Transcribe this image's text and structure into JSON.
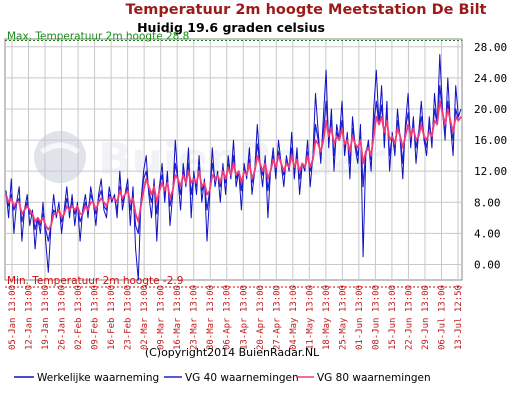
{
  "chart_data": {
    "type": "line",
    "title": "Temperatuur 2m hoogte Meetstation De Bilt",
    "subtitle": "Huidig 19.6 graden celsius",
    "max_label": "Max. Temperatuur 2m hoogte 28.8",
    "min_label": "Min. Temperatuur 2m hoogte -2.9",
    "watermark": "BuienRadar",
    "copyright": "(C)opyright2014 BuienRadar.NL",
    "ylim": [
      -2.0,
      29.0
    ],
    "yticks": [
      0,
      4,
      8,
      12,
      16,
      20,
      24,
      28
    ],
    "ytick_labels": [
      "0.00",
      "4.00",
      "8.00",
      "12.00",
      "16.00",
      "20.00",
      "24.00",
      "28.00"
    ],
    "max_value": 28.8,
    "min_value": -2.9,
    "x_labels": [
      "05-Jan 13:00",
      "12-Jan 13:00",
      "19-Jan 13:00",
      "26-Jan 13:00",
      "02-Feb 13:00",
      "09-Feb 13:00",
      "16-Feb 13:00",
      "23-Feb 13:00",
      "02-Mar 13:00",
      "09-Mar 13:00",
      "16-Mar 13:00",
      "23-Mar 13:00",
      "30-Mar 13:00",
      "06-Apr 13:00",
      "13-Apr 13:00",
      "20-Apr 13:00",
      "27-Apr 13:00",
      "04-May 13:00",
      "11-May 13:00",
      "18-May 13:00",
      "25-May 13:00",
      "01-Jun 13:00",
      "08-Jun 13:00",
      "15-Jun 13:00",
      "22-Jun 13:00",
      "29-Jun 13:00",
      "06-Jul 13:00",
      "13-Jul 12:50"
    ],
    "legend_position": "bottom",
    "grid": true,
    "series": [
      {
        "name": "Werkelijke waarneming",
        "color": "#1010c0",
        "values": [
          9.5,
          6,
          11,
          4,
          8,
          10,
          3,
          7,
          9,
          5,
          7,
          2,
          6,
          4,
          8,
          3,
          -1,
          5,
          9,
          6,
          8,
          4,
          7,
          10,
          6,
          9,
          5,
          8,
          3,
          7,
          9,
          6,
          10,
          8,
          5,
          9,
          11,
          7,
          6,
          10,
          8,
          9,
          6,
          12,
          7,
          9,
          11,
          5,
          10,
          2,
          -2,
          8,
          12,
          14,
          9,
          6,
          11,
          3,
          10,
          13,
          8,
          12,
          5,
          9,
          16,
          11,
          7,
          13,
          10,
          15,
          6,
          12,
          9,
          14,
          8,
          11,
          3,
          9,
          15,
          10,
          12,
          8,
          13,
          9,
          14,
          11,
          16,
          10,
          12,
          7,
          13,
          11,
          15,
          9,
          12,
          18,
          13,
          10,
          14,
          6,
          12,
          15,
          11,
          16,
          13,
          10,
          14,
          12,
          17,
          11,
          15,
          9,
          13,
          12,
          16,
          10,
          14,
          22,
          17,
          13,
          19,
          25,
          15,
          20,
          12,
          18,
          16,
          21,
          14,
          17,
          11,
          19,
          15,
          13,
          18,
          1,
          14,
          16,
          12,
          20,
          25,
          18,
          23,
          15,
          21,
          12,
          17,
          14,
          20,
          16,
          11,
          18,
          22,
          15,
          19,
          13,
          17,
          21,
          16,
          14,
          19,
          15,
          22,
          18,
          27,
          20,
          16,
          24,
          18,
          14,
          23,
          19,
          20
        ]
      },
      {
        "name": "VG 40 waarnemingen",
        "color": "#2020d0",
        "values": [
          9,
          7.5,
          9,
          7,
          8,
          8.5,
          5.5,
          7,
          8,
          6.5,
          6.5,
          4.5,
          6,
          5,
          6.5,
          4.5,
          3,
          5,
          7,
          6.5,
          7,
          5.5,
          6.5,
          8.5,
          7,
          8,
          6.5,
          7.5,
          5.5,
          6.5,
          8,
          7,
          9,
          8,
          6.5,
          8.5,
          9.5,
          7.5,
          7,
          9,
          8.5,
          8.5,
          7,
          10,
          8,
          9,
          10,
          7,
          9,
          5,
          4,
          8,
          11,
          12,
          9.5,
          8,
          10,
          6.5,
          10,
          11.5,
          9,
          11,
          7.5,
          9.5,
          13,
          11,
          9,
          12,
          10.5,
          13,
          9,
          11.5,
          10,
          12.5,
          9.5,
          10.5,
          7,
          9.5,
          13,
          11,
          11.5,
          10,
          12.5,
          10.5,
          13,
          11.5,
          14,
          11,
          12,
          9.5,
          12.5,
          11.5,
          13.5,
          10.5,
          12,
          15.5,
          13,
          11.5,
          13.5,
          9.5,
          12,
          14,
          12,
          14.5,
          13,
          11.5,
          13.5,
          12.5,
          15,
          12,
          14,
          11,
          13,
          12.5,
          14.5,
          12,
          13.5,
          18,
          16,
          14,
          17,
          21,
          16.5,
          18.5,
          14,
          17,
          16,
          18.5,
          15,
          16.5,
          13,
          17.5,
          15.5,
          14,
          17,
          10,
          14.5,
          15.5,
          13.5,
          18,
          21,
          18,
          20.5,
          16.5,
          19.5,
          14,
          16.5,
          15,
          18.5,
          16.5,
          13,
          17.5,
          19.5,
          16.5,
          18,
          15,
          17,
          19,
          16.5,
          15,
          18,
          16,
          20,
          18,
          23,
          19.5,
          17,
          21,
          18,
          16,
          20,
          18.5,
          19
        ]
      },
      {
        "name": "VG 80 waarnemingen",
        "color": "#f03c78",
        "values": [
          9,
          8,
          8.5,
          7.5,
          8,
          8,
          6.5,
          7,
          7.5,
          7,
          6.5,
          5.5,
          6,
          5.5,
          6,
          5,
          4.5,
          5,
          6.5,
          6.5,
          7,
          6,
          6.5,
          7.5,
          7,
          7.5,
          7,
          7.5,
          6.5,
          6.5,
          7.5,
          7,
          8,
          8,
          7,
          8,
          8.5,
          8,
          7.5,
          8.5,
          8.5,
          8.5,
          8,
          9.5,
          8.5,
          9,
          9.5,
          8,
          8.5,
          6.5,
          5.5,
          7.5,
          9.5,
          11,
          10,
          9,
          10,
          8,
          9.5,
          10.5,
          9.5,
          10.5,
          8.5,
          9.5,
          11.5,
          11,
          10,
          11.5,
          10.5,
          12,
          10.5,
          11,
          10.5,
          12,
          10,
          10.5,
          9,
          9.5,
          11.5,
          11,
          11.5,
          10.5,
          12,
          11,
          12.5,
          11.5,
          13,
          11.5,
          12,
          10.5,
          12,
          11.5,
          13,
          11,
          12,
          14,
          13,
          12,
          13,
          11,
          12,
          13.5,
          12.5,
          14,
          13,
          12,
          13,
          12.5,
          14,
          12.5,
          13.5,
          12,
          13,
          12.5,
          14,
          12.5,
          13.5,
          16,
          15.5,
          14.5,
          16,
          18.5,
          16.5,
          17.5,
          15.5,
          16.5,
          16,
          17.5,
          15.5,
          16,
          14.5,
          16.5,
          15.5,
          15,
          16,
          13,
          14.5,
          15,
          14,
          16.5,
          19,
          18,
          19,
          17,
          18.5,
          16,
          16.5,
          15.5,
          17.5,
          16.5,
          15,
          16.5,
          18,
          16.5,
          17.5,
          16,
          16.5,
          18,
          16.5,
          16,
          17,
          16.5,
          18.5,
          18,
          21,
          19.5,
          18,
          20,
          18.5,
          17,
          19,
          18.5,
          19
        ]
      }
    ]
  }
}
